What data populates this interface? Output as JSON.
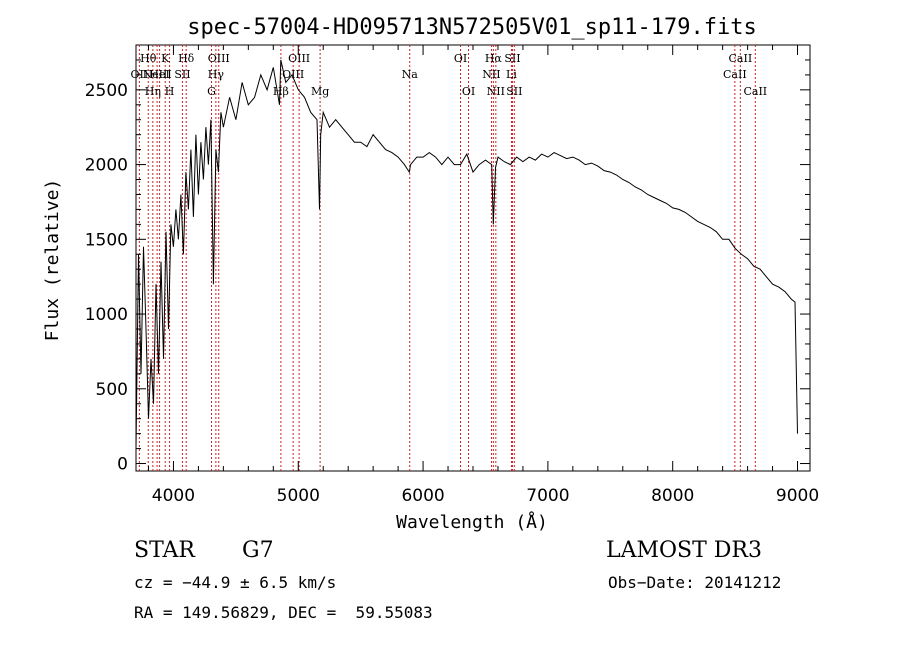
{
  "chart_data": {
    "type": "line",
    "title": "spec-57004-HD095713N572505V01_sp11-179.fits",
    "xlabel": "Wavelength (Å)",
    "ylabel": "Flux (relative)",
    "xlim": [
      3700,
      9100
    ],
    "ylim": [
      -50,
      2800
    ],
    "xticks": [
      4000,
      5000,
      6000,
      7000,
      8000,
      9000
    ],
    "yticks": [
      0,
      500,
      1000,
      1500,
      2000,
      2500
    ],
    "series": [
      {
        "name": "flux",
        "x": [
          3700,
          3720,
          3740,
          3760,
          3780,
          3800,
          3820,
          3840,
          3860,
          3880,
          3900,
          3920,
          3940,
          3960,
          3980,
          4000,
          4020,
          4040,
          4060,
          4080,
          4100,
          4120,
          4140,
          4160,
          4180,
          4200,
          4220,
          4240,
          4260,
          4280,
          4300,
          4320,
          4340,
          4360,
          4380,
          4400,
          4450,
          4500,
          4550,
          4600,
          4650,
          4700,
          4750,
          4800,
          4850,
          4860,
          4900,
          4950,
          5000,
          5050,
          5100,
          5150,
          5170,
          5180,
          5200,
          5250,
          5300,
          5350,
          5400,
          5450,
          5500,
          5550,
          5600,
          5650,
          5700,
          5750,
          5800,
          5850,
          5890,
          5900,
          5950,
          6000,
          6050,
          6100,
          6150,
          6200,
          6250,
          6300,
          6350,
          6400,
          6450,
          6500,
          6550,
          6563,
          6580,
          6600,
          6650,
          6700,
          6750,
          6800,
          6850,
          6900,
          6950,
          7000,
          7050,
          7100,
          7150,
          7200,
          7250,
          7300,
          7350,
          7400,
          7450,
          7500,
          7550,
          7600,
          7650,
          7700,
          7750,
          7800,
          7850,
          7900,
          7950,
          8000,
          8050,
          8100,
          8150,
          8200,
          8250,
          8300,
          8350,
          8400,
          8450,
          8500,
          8550,
          8600,
          8650,
          8700,
          8750,
          8800,
          8850,
          8900,
          8950,
          8980,
          9000
        ],
        "y": [
          100,
          1400,
          600,
          1450,
          900,
          300,
          700,
          400,
          1200,
          600,
          1350,
          700,
          1550,
          900,
          1600,
          1450,
          1700,
          1500,
          1800,
          1400,
          1950,
          1700,
          2100,
          1650,
          2200,
          1800,
          2150,
          1900,
          2250,
          2000,
          2300,
          1200,
          2100,
          1950,
          2350,
          2250,
          2450,
          2300,
          2550,
          2400,
          2450,
          2600,
          2500,
          2650,
          2400,
          2700,
          2550,
          2600,
          2500,
          2450,
          2350,
          2300,
          1700,
          2200,
          2350,
          2250,
          2300,
          2250,
          2200,
          2150,
          2150,
          2120,
          2200,
          2150,
          2100,
          2080,
          2050,
          2000,
          1950,
          2000,
          2050,
          2050,
          2080,
          2050,
          2000,
          2050,
          2000,
          2000,
          2070,
          1950,
          2000,
          2030,
          2000,
          1600,
          1980,
          2050,
          2020,
          2000,
          2050,
          2020,
          2050,
          2030,
          2070,
          2050,
          2080,
          2060,
          2040,
          2050,
          2030,
          2000,
          2010,
          1990,
          1960,
          1950,
          1930,
          1900,
          1880,
          1850,
          1830,
          1800,
          1780,
          1760,
          1740,
          1710,
          1700,
          1680,
          1650,
          1620,
          1600,
          1580,
          1550,
          1500,
          1500,
          1440,
          1400,
          1370,
          1320,
          1300,
          1250,
          1200,
          1180,
          1150,
          1100,
          1080,
          200
        ]
      }
    ],
    "lines": [
      {
        "w": 3727,
        "label": "OII",
        "row": 2
      },
      {
        "w": 3798,
        "label": "Hθ",
        "row": 1
      },
      {
        "w": 3835,
        "label": "Hη",
        "row": 3
      },
      {
        "w": 3869,
        "label": "NeIII",
        "row": 2
      },
      {
        "w": 3889,
        "label": "HeI",
        "row": 2
      },
      {
        "w": 3934,
        "label": "K",
        "row": 1
      },
      {
        "w": 3969,
        "label": "H",
        "row": 3
      },
      {
        "w": 4072,
        "label": "SII",
        "row": 2
      },
      {
        "w": 4102,
        "label": "Hδ",
        "row": 1
      },
      {
        "w": 4305,
        "label": "G",
        "row": 3
      },
      {
        "w": 4340,
        "label": "Hγ",
        "row": 2
      },
      {
        "w": 4363,
        "label": "OIII",
        "row": 1
      },
      {
        "w": 4861,
        "label": "Hβ",
        "row": 3
      },
      {
        "w": 4959,
        "label": "OIII",
        "row": 2
      },
      {
        "w": 5007,
        "label": "OIII",
        "row": 1
      },
      {
        "w": 5175,
        "label": "Mg",
        "row": 3
      },
      {
        "w": 5893,
        "label": "Na",
        "row": 2
      },
      {
        "w": 6300,
        "label": "OI",
        "row": 1
      },
      {
        "w": 6364,
        "label": "OI",
        "row": 3
      },
      {
        "w": 6548,
        "label": "NII",
        "row": 2
      },
      {
        "w": 6563,
        "label": "Hα",
        "row": 1
      },
      {
        "w": 6583,
        "label": "NII",
        "row": 3
      },
      {
        "w": 6716,
        "label": "SII",
        "row": 1
      },
      {
        "w": 6731,
        "label": "SII",
        "row": 3
      },
      {
        "w": 6708,
        "label": "Li",
        "row": 2
      },
      {
        "w": 8498,
        "label": "CaII",
        "row": 2
      },
      {
        "w": 8542,
        "label": "CaII",
        "row": 1
      },
      {
        "w": 8662,
        "label": "CaII",
        "row": 3
      }
    ]
  },
  "info": {
    "class": "STAR",
    "subclass": "G7",
    "survey": "LAMOST DR3",
    "cz": "cz = −44.9 ± 6.5 km/s",
    "obs_date": "Obs−Date: 20141212",
    "radec": "RA = 149.56829, DEC =  59.55083"
  }
}
